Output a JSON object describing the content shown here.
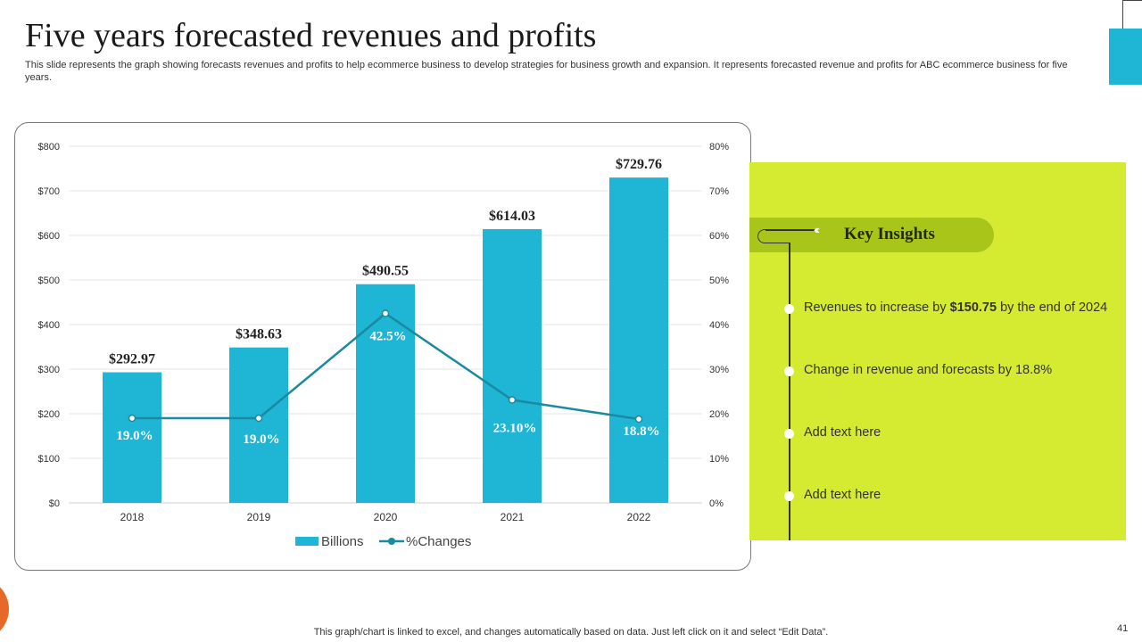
{
  "slide": {
    "title": "Five years forecasted revenues and profits",
    "subtitle": "This slide represents the graph showing forecasts revenues and profits to help ecommerce business to develop strategies for business growth and expansion. It represents forecasted revenue and profits for ABC ecommerce business for five years.",
    "footer": "This graph/chart is linked to excel, and changes automatically based on data. Just left click on it and select “Edit Data”.",
    "page_number": "41"
  },
  "insights": {
    "title": "Key Insights",
    "items": [
      {
        "prefix": "Revenues to increase by ",
        "bold": "$150.75",
        "suffix": " by the end of 2024"
      },
      {
        "prefix": "Change in revenue and forecasts by 18.8%",
        "bold": "",
        "suffix": ""
      },
      {
        "prefix": "Add text here",
        "bold": "",
        "suffix": ""
      },
      {
        "prefix": "Add text here",
        "bold": "",
        "suffix": ""
      }
    ]
  },
  "colors": {
    "bar": "#1fb5d5",
    "line": "#1a8aa0",
    "panel": "#d4eb31",
    "pill": "#a9c51a"
  },
  "chart_data": {
    "type": "bar",
    "categories": [
      "2018",
      "2019",
      "2020",
      "2021",
      "2022"
    ],
    "series": [
      {
        "name": "Billions",
        "type": "bar",
        "axis": "left",
        "values": [
          292.97,
          348.63,
          490.55,
          614.03,
          729.76
        ],
        "labels": [
          "$292.97",
          "$348.63",
          "$490.55",
          "$614.03",
          "$729.76"
        ]
      },
      {
        "name": "%Changes",
        "type": "line",
        "axis": "right",
        "values": [
          19.0,
          19.0,
          42.5,
          23.1,
          18.8
        ],
        "labels": [
          "19.0%",
          "19.0%",
          "42.5%",
          "23.10%",
          "18.8%"
        ]
      }
    ],
    "y_left": {
      "min": 0,
      "max": 800,
      "ticks": [
        "$0",
        "$100",
        "$200",
        "$300",
        "$400",
        "$500",
        "$600",
        "$700",
        "$800"
      ]
    },
    "y_right": {
      "min": 0,
      "max": 80,
      "ticks": [
        "0%",
        "10%",
        "20%",
        "30%",
        "40%",
        "50%",
        "60%",
        "70%",
        "80%"
      ]
    },
    "grid": true,
    "legend": "bottom"
  }
}
